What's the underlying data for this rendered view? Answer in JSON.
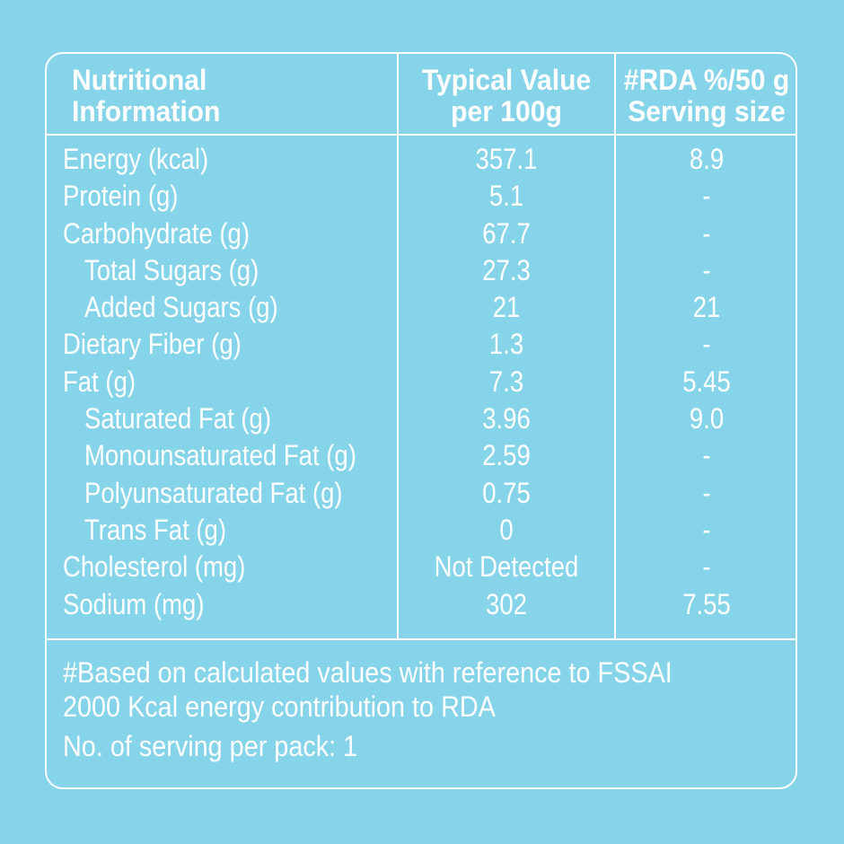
{
  "header": {
    "col1": "Nutritional\nInformation",
    "col2": "Typical Value\nper 100g",
    "col3": "#RDA %/50 g\nServing size"
  },
  "rows": [
    {
      "name": "Energy (kcal)",
      "value": "357.1",
      "rda": "8.9",
      "indent": false
    },
    {
      "name": "Protein (g)",
      "value": "5.1",
      "rda": "-",
      "indent": false
    },
    {
      "name": "Carbohydrate (g)",
      "value": "67.7",
      "rda": "-",
      "indent": false
    },
    {
      "name": "Total Sugars (g)",
      "value": "27.3",
      "rda": "-",
      "indent": true
    },
    {
      "name": "Added Sugars (g)",
      "value": "21",
      "rda": "21",
      "indent": true
    },
    {
      "name": "Dietary Fiber (g)",
      "value": "1.3",
      "rda": "-",
      "indent": false
    },
    {
      "name": "Fat (g)",
      "value": "7.3",
      "rda": "5.45",
      "indent": false
    },
    {
      "name": "Saturated Fat (g)",
      "value": "3.96",
      "rda": "9.0",
      "indent": true
    },
    {
      "name": "Monounsaturated Fat (g)",
      "value": "2.59",
      "rda": "-",
      "indent": true
    },
    {
      "name": "Polyunsaturated Fat (g)",
      "value": "0.75",
      "rda": "-",
      "indent": true
    },
    {
      "name": "Trans Fat (g)",
      "value": "0",
      "rda": "-",
      "indent": true
    },
    {
      "name": "Cholesterol (mg)",
      "value": "Not Detected",
      "rda": "-",
      "indent": false
    },
    {
      "name": "Sodium (mg)",
      "value": "302",
      "rda": "7.55",
      "indent": false
    }
  ],
  "footer": {
    "line1": "#Based on calculated values with reference to FSSAI",
    "line2": "2000 Kcal energy contribution to RDA",
    "servings": "No. of serving per pack: 1"
  },
  "colors": {
    "background": "#86d4ea",
    "text": "#ffffff"
  }
}
